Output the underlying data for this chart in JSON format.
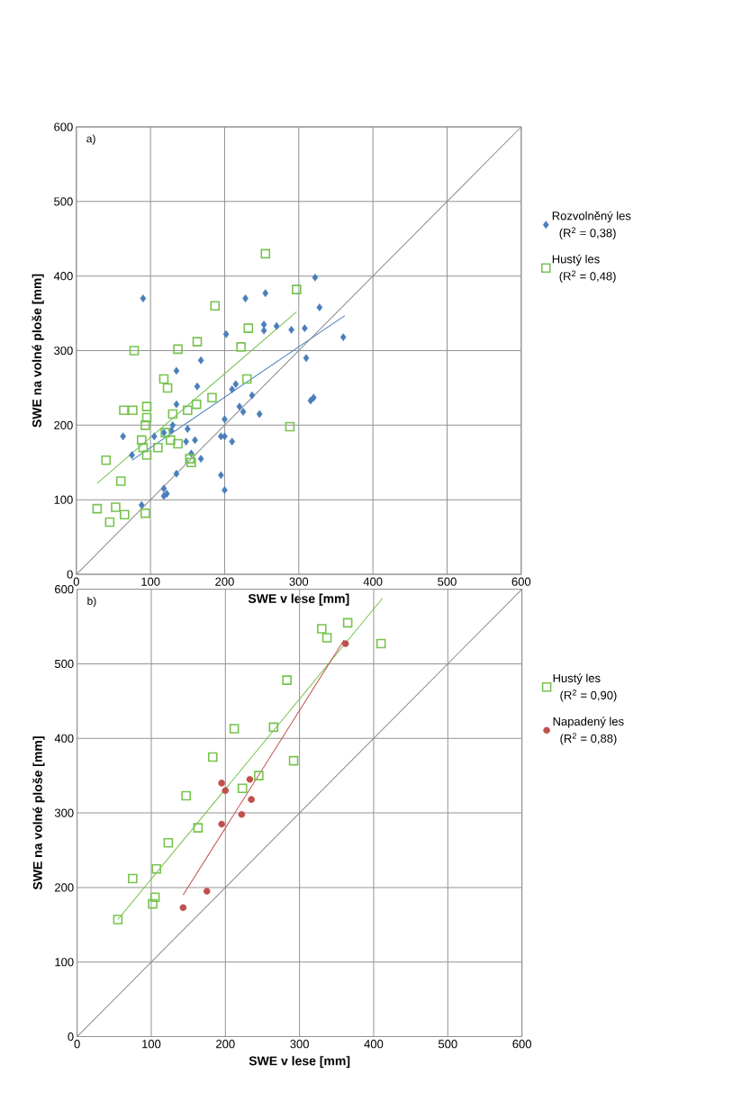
{
  "chart_data": [
    {
      "type": "scatter",
      "title": "a)",
      "xlabel": "SWE v lese [mm]",
      "ylabel": "SWE na volné ploše [mm]",
      "xlim": [
        0,
        600
      ],
      "ylim": [
        0,
        600
      ],
      "xticks": [
        0,
        100,
        200,
        300,
        400,
        500,
        600
      ],
      "yticks": [
        0,
        100,
        200,
        300,
        400,
        500,
        600
      ],
      "grid": true,
      "legend": "right",
      "annotations": [
        "(R$^{2}$ = 0,38)",
        "(R$^{2}$ = 0,48)"
      ],
      "series": [
        {
          "name": "Rozvolněný les",
          "color": "#4a7ebb",
          "marker": "diamond",
          "x": [
            90,
            255,
            228,
            322,
            328,
            253,
            270,
            290,
            308,
            360,
            310,
            253,
            202,
            168,
            135,
            215,
            210,
            163,
            220,
            237,
            247,
            225,
            320,
            316,
            135,
            118,
            150,
            160,
            195,
            200,
            210,
            200,
            148,
            155,
            168,
            63,
            128,
            135,
            118,
            118,
            122,
            195,
            200,
            88,
            75,
            105,
            130
          ],
          "values": [
            370,
            377,
            370,
            398,
            358,
            335,
            333,
            328,
            330,
            318,
            290,
            327,
            322,
            287,
            273,
            255,
            248,
            252,
            225,
            240,
            215,
            218,
            237,
            233,
            228,
            190,
            195,
            180,
            185,
            185,
            178,
            208,
            178,
            162,
            155,
            185,
            193,
            135,
            115,
            105,
            108,
            133,
            113,
            93,
            160,
            185,
            200
          ]
        },
        {
          "name": "Hustý les",
          "color": "#77c34f",
          "marker": "square",
          "x": [
            255,
            297,
            187,
            232,
            222,
            230,
            163,
            137,
            78,
            118,
            123,
            183,
            130,
            150,
            162,
            120,
            95,
            95,
            93,
            76,
            64,
            88,
            90,
            110,
            127,
            137,
            95,
            155,
            153,
            288,
            40,
            60,
            28,
            53,
            45,
            65,
            93
          ],
          "values": [
            430,
            382,
            360,
            330,
            305,
            262,
            312,
            302,
            300,
            262,
            250,
            237,
            215,
            220,
            228,
            190,
            225,
            210,
            200,
            220,
            220,
            180,
            170,
            170,
            180,
            175,
            160,
            150,
            155,
            198,
            153,
            125,
            88,
            90,
            70,
            80,
            82
          ]
        },
        {
          "type": "line",
          "color": "#4a7ebb",
          "marker": "none",
          "x": [
            75,
            362
          ],
          "values": [
            153,
            347
          ]
        },
        {
          "type": "line",
          "color": "#77c34f",
          "marker": "none",
          "x": [
            28,
            297
          ],
          "values": [
            122,
            352
          ]
        },
        {
          "type": "line",
          "color": "#8c8c8c",
          "marker": "none",
          "x": [
            0,
            600
          ],
          "values": [
            0,
            600
          ]
        }
      ]
    },
    {
      "type": "scatter",
      "title": "b)",
      "xlabel": "SWE v lese [mm]",
      "ylabel": "SWE na volné ploše [mm]",
      "xlim": [
        0,
        600
      ],
      "ylim": [
        0,
        600
      ],
      "xticks": [
        0,
        100,
        200,
        300,
        400,
        500,
        600
      ],
      "yticks": [
        0,
        100,
        200,
        300,
        400,
        500,
        600
      ],
      "grid": true,
      "legend": "right",
      "annotations": [
        "(R$^{2}$ = 0,90)",
        "(R$^{2}$ = 0,88)"
      ],
      "series": [
        {
          "name": "Hustý les",
          "color": "#77c34f",
          "marker": "square",
          "x": [
            55,
            75,
            107,
            105,
            102,
            123,
            147,
            163,
            183,
            212,
            223,
            245,
            265,
            283,
            292,
            330,
            337,
            365,
            410
          ],
          "values": [
            157,
            212,
            225,
            187,
            178,
            260,
            323,
            280,
            375,
            413,
            333,
            350,
            415,
            478,
            370,
            547,
            535,
            555,
            527
          ]
        },
        {
          "name": "Napadený les",
          "color": "#c0504d",
          "marker": "circle",
          "x": [
            143,
            175,
            195,
            195,
            200,
            222,
            233,
            235,
            362
          ],
          "values": [
            173,
            195,
            285,
            340,
            330,
            298,
            345,
            318,
            527
          ]
        },
        {
          "type": "line",
          "color": "#77c34f",
          "marker": "none",
          "x": [
            55,
            412
          ],
          "values": [
            157,
            588
          ]
        },
        {
          "type": "line",
          "color": "#c0504d",
          "marker": "none",
          "x": [
            143,
            360
          ],
          "values": [
            190,
            532
          ]
        },
        {
          "type": "line",
          "color": "#8c8c8c",
          "marker": "none",
          "x": [
            0,
            600
          ],
          "values": [
            0,
            600
          ]
        }
      ]
    }
  ]
}
